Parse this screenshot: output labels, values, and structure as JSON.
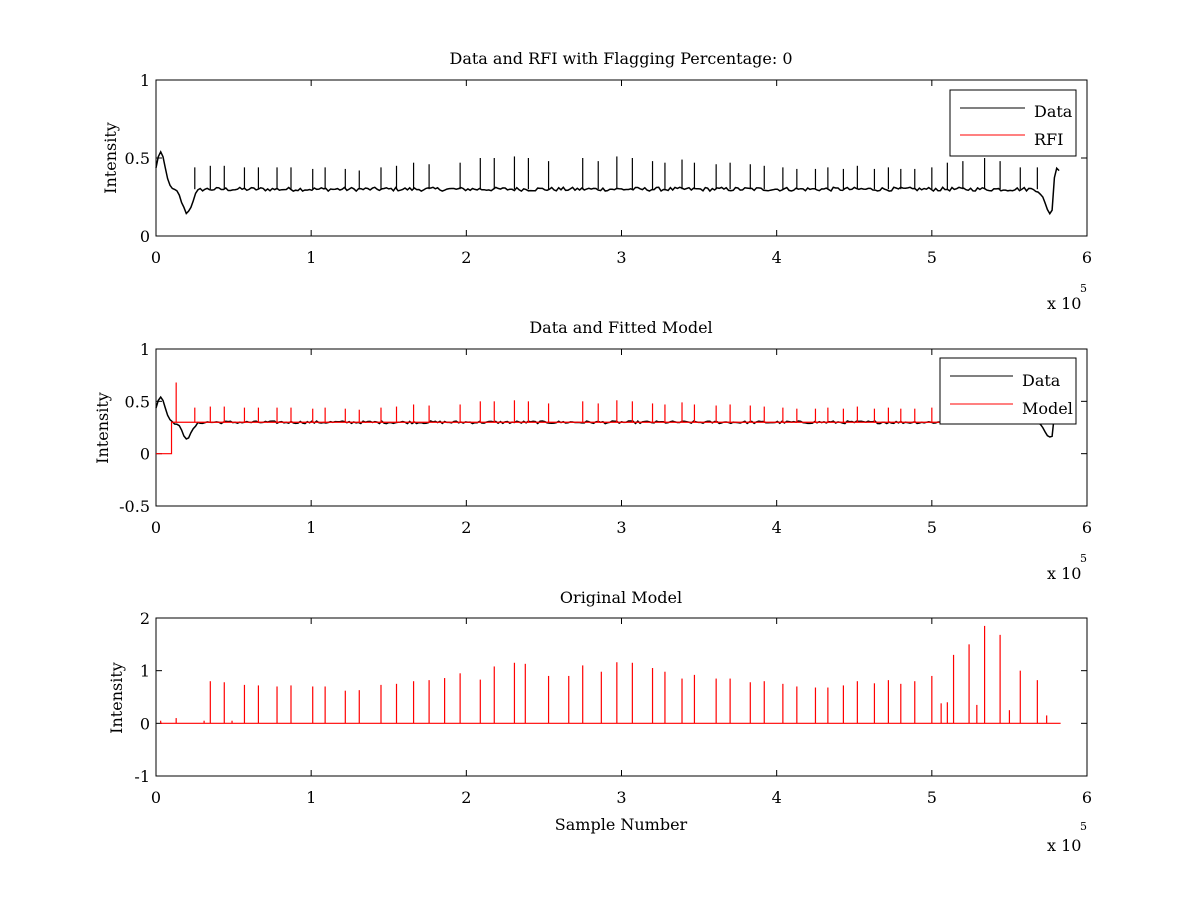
{
  "colors": {
    "data": "#000000",
    "rfi": "#ff0000",
    "model": "#ff0000",
    "axes": "#000000",
    "background": "#ffffff"
  },
  "chart_data": [
    {
      "type": "line",
      "title": "Data and RFI with Flagging Percentage: 0",
      "xlabel": "",
      "ylabel": "Intensity",
      "xlim": [
        0,
        600000
      ],
      "ylim": [
        0,
        1
      ],
      "xticks": [
        0,
        1,
        2,
        3,
        4,
        5,
        6
      ],
      "yticks": [
        "0",
        "0.5",
        "1"
      ],
      "x_exponent": {
        "text": "x 10",
        "power": "5"
      },
      "legend": {
        "placement": "top-right",
        "entries": [
          "Data",
          "RFI"
        ]
      },
      "grid": false,
      "series": [
        {
          "name": "Data",
          "color": "#000000",
          "baseline": 0.3,
          "x_range": [
            0,
            583000
          ],
          "dips": [
            {
              "x": 20000,
              "y": 0.15
            },
            {
              "x": 576000,
              "y": 0.15
            }
          ],
          "start_peak": {
            "x": 3000,
            "y": 0.54
          },
          "end_peak": {
            "x": 581000,
            "y": 0.44
          },
          "peaks": [
            {
              "x": 25000,
              "y": 0.44
            },
            {
              "x": 35000,
              "y": 0.45
            },
            {
              "x": 44000,
              "y": 0.45
            },
            {
              "x": 57000,
              "y": 0.44
            },
            {
              "x": 66000,
              "y": 0.44
            },
            {
              "x": 78000,
              "y": 0.44
            },
            {
              "x": 87000,
              "y": 0.44
            },
            {
              "x": 101000,
              "y": 0.43
            },
            {
              "x": 109000,
              "y": 0.44
            },
            {
              "x": 122000,
              "y": 0.43
            },
            {
              "x": 131000,
              "y": 0.42
            },
            {
              "x": 145000,
              "y": 0.44
            },
            {
              "x": 155000,
              "y": 0.45
            },
            {
              "x": 166000,
              "y": 0.47
            },
            {
              "x": 176000,
              "y": 0.46
            },
            {
              "x": 196000,
              "y": 0.47
            },
            {
              "x": 209000,
              "y": 0.5
            },
            {
              "x": 218000,
              "y": 0.5
            },
            {
              "x": 231000,
              "y": 0.51
            },
            {
              "x": 240000,
              "y": 0.5
            },
            {
              "x": 253000,
              "y": 0.48
            },
            {
              "x": 275000,
              "y": 0.5
            },
            {
              "x": 285000,
              "y": 0.48
            },
            {
              "x": 297000,
              "y": 0.51
            },
            {
              "x": 307000,
              "y": 0.5
            },
            {
              "x": 320000,
              "y": 0.48
            },
            {
              "x": 328000,
              "y": 0.47
            },
            {
              "x": 339000,
              "y": 0.49
            },
            {
              "x": 347000,
              "y": 0.47
            },
            {
              "x": 361000,
              "y": 0.46
            },
            {
              "x": 370000,
              "y": 0.47
            },
            {
              "x": 383000,
              "y": 0.46
            },
            {
              "x": 392000,
              "y": 0.45
            },
            {
              "x": 404000,
              "y": 0.44
            },
            {
              "x": 413000,
              "y": 0.43
            },
            {
              "x": 425000,
              "y": 0.43
            },
            {
              "x": 433000,
              "y": 0.44
            },
            {
              "x": 443000,
              "y": 0.43
            },
            {
              "x": 452000,
              "y": 0.45
            },
            {
              "x": 463000,
              "y": 0.43
            },
            {
              "x": 472000,
              "y": 0.44
            },
            {
              "x": 480000,
              "y": 0.43
            },
            {
              "x": 489000,
              "y": 0.43
            },
            {
              "x": 500000,
              "y": 0.44
            },
            {
              "x": 510000,
              "y": 0.47
            },
            {
              "x": 520000,
              "y": 0.48
            },
            {
              "x": 534000,
              "y": 0.5
            },
            {
              "x": 544000,
              "y": 0.48
            },
            {
              "x": 557000,
              "y": 0.44
            },
            {
              "x": 568000,
              "y": 0.44
            }
          ]
        },
        {
          "name": "RFI",
          "color": "#ff0000",
          "values": []
        }
      ]
    },
    {
      "type": "line",
      "title": "Data and Fitted Model",
      "xlabel": "",
      "ylabel": "Intensity",
      "xlim": [
        0,
        600000
      ],
      "ylim": [
        -0.5,
        1
      ],
      "xticks": [
        0,
        1,
        2,
        3,
        4,
        5,
        6
      ],
      "yticks": [
        "-0.5",
        "0",
        "0.5",
        "1"
      ],
      "x_exponent": {
        "text": "x 10",
        "power": "5"
      },
      "legend": {
        "placement": "top-right",
        "entries": [
          "Data",
          "Model"
        ]
      },
      "grid": false,
      "series": [
        {
          "name": "Data",
          "color": "#000000",
          "baseline": 0.3,
          "x_range": [
            0,
            583000
          ],
          "dips": [
            {
              "x": 20000,
              "y": 0.15
            },
            {
              "x": 576000,
              "y": 0.15
            }
          ],
          "start_peak": {
            "x": 3000,
            "y": 0.54
          },
          "end_peak": {
            "x": 581000,
            "y": 0.44
          }
        },
        {
          "name": "Model",
          "color": "#ff0000",
          "baseline": 0.3,
          "start": {
            "x_from": 0,
            "x_to": 10000,
            "y": 0.0
          },
          "peaks": [
            {
              "x": 13000,
              "y": 0.68
            },
            {
              "x": 25000,
              "y": 0.44
            },
            {
              "x": 35000,
              "y": 0.45
            },
            {
              "x": 44000,
              "y": 0.45
            },
            {
              "x": 57000,
              "y": 0.44
            },
            {
              "x": 66000,
              "y": 0.44
            },
            {
              "x": 78000,
              "y": 0.44
            },
            {
              "x": 87000,
              "y": 0.44
            },
            {
              "x": 101000,
              "y": 0.43
            },
            {
              "x": 109000,
              "y": 0.44
            },
            {
              "x": 122000,
              "y": 0.43
            },
            {
              "x": 131000,
              "y": 0.42
            },
            {
              "x": 145000,
              "y": 0.44
            },
            {
              "x": 155000,
              "y": 0.45
            },
            {
              "x": 166000,
              "y": 0.47
            },
            {
              "x": 176000,
              "y": 0.46
            },
            {
              "x": 196000,
              "y": 0.47
            },
            {
              "x": 209000,
              "y": 0.5
            },
            {
              "x": 218000,
              "y": 0.5
            },
            {
              "x": 231000,
              "y": 0.51
            },
            {
              "x": 240000,
              "y": 0.5
            },
            {
              "x": 253000,
              "y": 0.48
            },
            {
              "x": 275000,
              "y": 0.5
            },
            {
              "x": 285000,
              "y": 0.48
            },
            {
              "x": 297000,
              "y": 0.51
            },
            {
              "x": 307000,
              "y": 0.5
            },
            {
              "x": 320000,
              "y": 0.48
            },
            {
              "x": 328000,
              "y": 0.47
            },
            {
              "x": 339000,
              "y": 0.49
            },
            {
              "x": 347000,
              "y": 0.47
            },
            {
              "x": 361000,
              "y": 0.46
            },
            {
              "x": 370000,
              "y": 0.47
            },
            {
              "x": 383000,
              "y": 0.46
            },
            {
              "x": 392000,
              "y": 0.45
            },
            {
              "x": 404000,
              "y": 0.44
            },
            {
              "x": 413000,
              "y": 0.43
            },
            {
              "x": 425000,
              "y": 0.43
            },
            {
              "x": 433000,
              "y": 0.44
            },
            {
              "x": 443000,
              "y": 0.43
            },
            {
              "x": 452000,
              "y": 0.45
            },
            {
              "x": 463000,
              "y": 0.43
            },
            {
              "x": 472000,
              "y": 0.44
            },
            {
              "x": 480000,
              "y": 0.43
            },
            {
              "x": 489000,
              "y": 0.43
            },
            {
              "x": 500000,
              "y": 0.44
            },
            {
              "x": 510000,
              "y": 0.47
            },
            {
              "x": 520000,
              "y": 0.48
            },
            {
              "x": 534000,
              "y": 0.5
            },
            {
              "x": 544000,
              "y": 0.48
            },
            {
              "x": 557000,
              "y": 0.44
            },
            {
              "x": 568000,
              "y": 0.44
            }
          ]
        }
      ]
    },
    {
      "type": "line",
      "title": "Original Model",
      "xlabel": "Sample Number",
      "ylabel": "Intensity",
      "xlim": [
        0,
        600000
      ],
      "ylim": [
        -1,
        2
      ],
      "xticks": [
        0,
        1,
        2,
        3,
        4,
        5,
        6
      ],
      "yticks": [
        "-1",
        "0",
        "1",
        "2"
      ],
      "x_exponent": {
        "text": "x 10",
        "power": "5"
      },
      "grid": false,
      "series": [
        {
          "name": "Model",
          "color": "#ff0000",
          "baseline": 0.0,
          "x_range": [
            3000,
            583000
          ],
          "peaks": [
            {
              "x": 3000,
              "y": 0.05
            },
            {
              "x": 13000,
              "y": 0.1
            },
            {
              "x": 31000,
              "y": 0.05
            },
            {
              "x": 35000,
              "y": 0.8
            },
            {
              "x": 44000,
              "y": 0.78
            },
            {
              "x": 49000,
              "y": 0.05
            },
            {
              "x": 57000,
              "y": 0.73
            },
            {
              "x": 66000,
              "y": 0.72
            },
            {
              "x": 78000,
              "y": 0.7
            },
            {
              "x": 87000,
              "y": 0.72
            },
            {
              "x": 101000,
              "y": 0.7
            },
            {
              "x": 109000,
              "y": 0.7
            },
            {
              "x": 122000,
              "y": 0.62
            },
            {
              "x": 131000,
              "y": 0.63
            },
            {
              "x": 145000,
              "y": 0.73
            },
            {
              "x": 155000,
              "y": 0.75
            },
            {
              "x": 166000,
              "y": 0.8
            },
            {
              "x": 176000,
              "y": 0.82
            },
            {
              "x": 186000,
              "y": 0.86
            },
            {
              "x": 196000,
              "y": 0.95
            },
            {
              "x": 209000,
              "y": 0.83
            },
            {
              "x": 218000,
              "y": 1.08
            },
            {
              "x": 231000,
              "y": 1.15
            },
            {
              "x": 238000,
              "y": 1.13
            },
            {
              "x": 253000,
              "y": 0.9
            },
            {
              "x": 266000,
              "y": 0.9
            },
            {
              "x": 275000,
              "y": 1.1
            },
            {
              "x": 287000,
              "y": 0.98
            },
            {
              "x": 297000,
              "y": 1.16
            },
            {
              "x": 307000,
              "y": 1.15
            },
            {
              "x": 320000,
              "y": 1.05
            },
            {
              "x": 328000,
              "y": 0.98
            },
            {
              "x": 339000,
              "y": 0.85
            },
            {
              "x": 347000,
              "y": 0.92
            },
            {
              "x": 361000,
              "y": 0.85
            },
            {
              "x": 370000,
              "y": 0.85
            },
            {
              "x": 383000,
              "y": 0.78
            },
            {
              "x": 392000,
              "y": 0.8
            },
            {
              "x": 404000,
              "y": 0.75
            },
            {
              "x": 413000,
              "y": 0.7
            },
            {
              "x": 425000,
              "y": 0.68
            },
            {
              "x": 433000,
              "y": 0.68
            },
            {
              "x": 443000,
              "y": 0.72
            },
            {
              "x": 452000,
              "y": 0.8
            },
            {
              "x": 463000,
              "y": 0.76
            },
            {
              "x": 472000,
              "y": 0.82
            },
            {
              "x": 480000,
              "y": 0.75
            },
            {
              "x": 489000,
              "y": 0.8
            },
            {
              "x": 500000,
              "y": 0.9
            },
            {
              "x": 506000,
              "y": 0.38
            },
            {
              "x": 510000,
              "y": 0.4
            },
            {
              "x": 514000,
              "y": 1.3
            },
            {
              "x": 524000,
              "y": 1.5
            },
            {
              "x": 529000,
              "y": 0.35
            },
            {
              "x": 534000,
              "y": 1.85
            },
            {
              "x": 544000,
              "y": 1.68
            },
            {
              "x": 550000,
              "y": 0.25
            },
            {
              "x": 557000,
              "y": 1.0
            },
            {
              "x": 568000,
              "y": 0.82
            },
            {
              "x": 574000,
              "y": 0.15
            }
          ]
        }
      ]
    }
  ]
}
